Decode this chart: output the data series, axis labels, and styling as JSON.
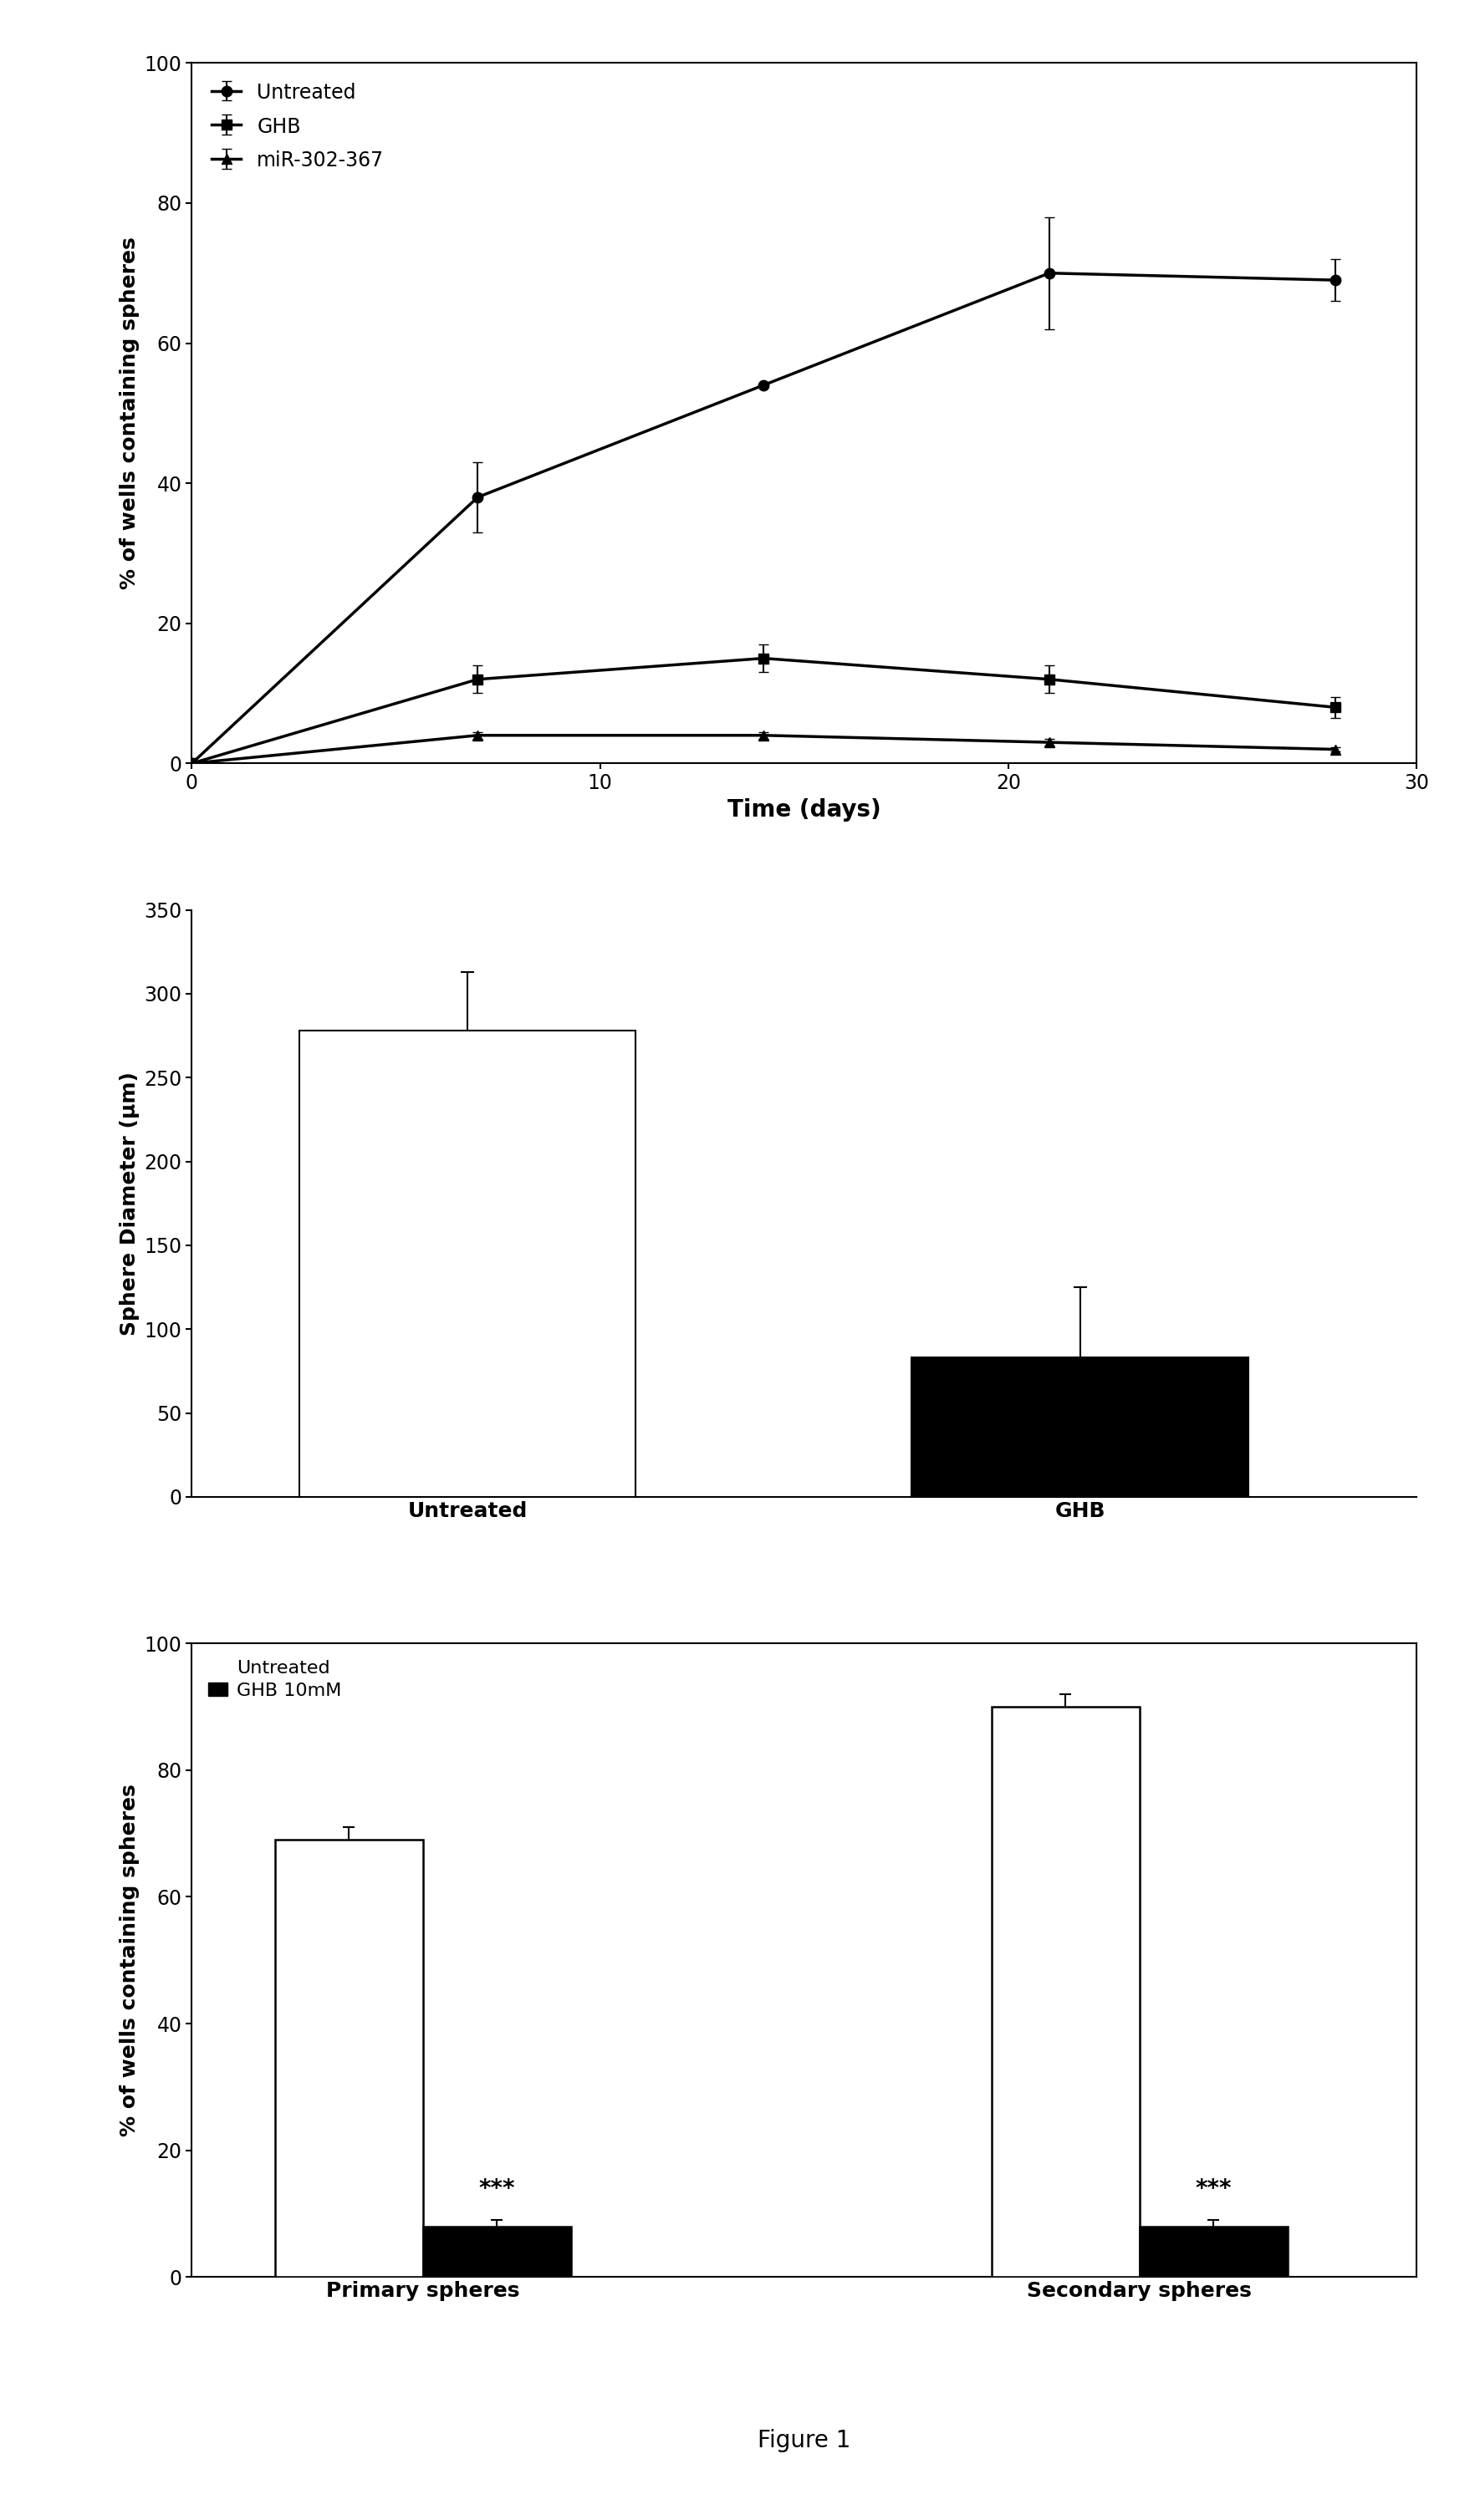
{
  "panel1": {
    "xlabel": "Time (days)",
    "ylabel": "% of wells containing spheres",
    "xlim": [
      0,
      30
    ],
    "ylim": [
      0,
      100
    ],
    "xticks": [
      0,
      10,
      20,
      30
    ],
    "yticks": [
      0,
      20,
      40,
      60,
      80,
      100
    ],
    "series": [
      {
        "label": "Untreated",
        "marker": "o",
        "x": [
          0,
          7,
          14,
          21,
          28
        ],
        "y": [
          0,
          38,
          54,
          70,
          69
        ],
        "yerr": [
          0,
          5,
          0,
          8,
          3
        ],
        "color": "#000000",
        "linewidth": 2.5,
        "markersize": 9
      },
      {
        "label": "GHB",
        "marker": "s",
        "x": [
          0,
          7,
          14,
          21,
          28
        ],
        "y": [
          0,
          12,
          15,
          12,
          8
        ],
        "yerr": [
          0,
          2,
          2,
          2,
          1.5
        ],
        "color": "#000000",
        "linewidth": 2.5,
        "markersize": 9
      },
      {
        "label": "miR-302-367",
        "marker": "^",
        "x": [
          0,
          7,
          14,
          21,
          28
        ],
        "y": [
          0,
          4,
          4,
          3,
          2
        ],
        "yerr": [
          0,
          0.5,
          0.5,
          0.5,
          0.3
        ],
        "color": "#000000",
        "linewidth": 2.5,
        "markersize": 9
      }
    ]
  },
  "panel2": {
    "ylabel": "Sphere Diameter (μm)",
    "ylim": [
      0,
      350
    ],
    "yticks": [
      0,
      50,
      100,
      150,
      200,
      250,
      300,
      350
    ],
    "categories": [
      "Untreated",
      "GHB"
    ],
    "values": [
      278,
      83
    ],
    "yerr": [
      35,
      42
    ],
    "bar_colors": [
      "#ffffff",
      "#000000"
    ],
    "bar_edgecolor": "#000000",
    "bar_width": 0.55,
    "xlim": [
      -0.45,
      1.55
    ]
  },
  "panel3": {
    "ylabel": "% of wells containing spheres",
    "ylim": [
      0,
      100
    ],
    "yticks": [
      0,
      20,
      40,
      60,
      80,
      100
    ],
    "legend_labels": [
      "Untreated",
      "GHB 10mM"
    ],
    "group_labels": [
      "Primary spheres",
      "Secondary spheres"
    ],
    "untreated_values": [
      69,
      90
    ],
    "untreated_yerr": [
      2,
      2
    ],
    "ghb_values": [
      8,
      8
    ],
    "ghb_yerr": [
      1,
      1
    ],
    "bar_width": 0.32,
    "group_centers": [
      0.55,
      2.1
    ],
    "significance": "***",
    "xlim": [
      0.05,
      2.7
    ]
  },
  "figure_label": "Figure 1",
  "background_color": "#ffffff"
}
